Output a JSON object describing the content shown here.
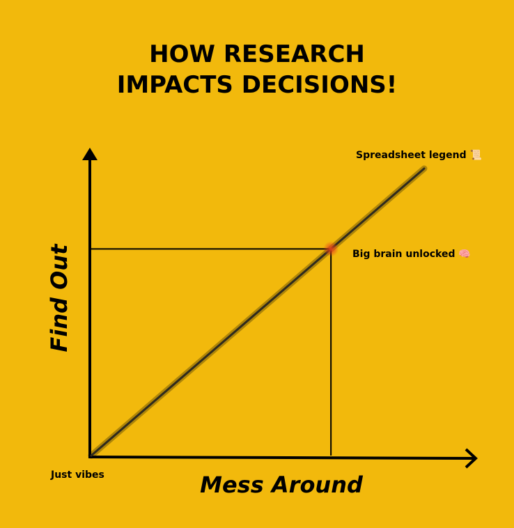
{
  "colors": {
    "background": "#F2B90C",
    "ink": "#000000",
    "trend": "#2E2A1E",
    "highlight": "#E8431C"
  },
  "chart_data": {
    "type": "line",
    "title_lines": [
      "HOW RESEARCH",
      "IMPACTS DECISIONS!"
    ],
    "xlabel": "Mess Around",
    "ylabel": "Find Out",
    "xlim": [
      0,
      100
    ],
    "ylim": [
      0,
      100
    ],
    "grid": false,
    "series": [
      {
        "points": [
          {
            "x": 0,
            "y": 0
          },
          {
            "x": 100,
            "y": 100
          }
        ]
      }
    ],
    "highlight_point": {
      "x": 72,
      "y": 72
    },
    "annotations": [
      {
        "text": "Just vibes",
        "x": 0,
        "y": 0
      },
      {
        "text": "Big brain unlocked 🧠",
        "x": 72,
        "y": 72
      },
      {
        "text": "Spreadsheet legend 📜",
        "x": 100,
        "y": 100
      }
    ]
  }
}
